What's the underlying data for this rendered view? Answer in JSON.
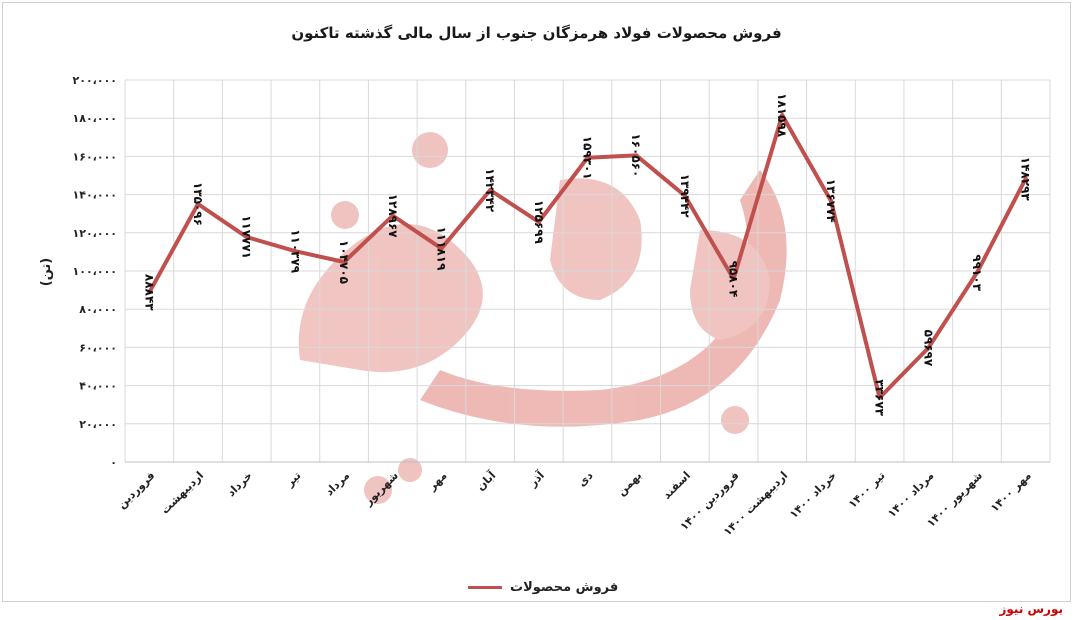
{
  "chart_data": {
    "type": "line",
    "title": "فروش محصولات فولاد هرمزگان جنوب از سال مالی گذشته تاکنون",
    "ylabel": "(تن)",
    "ylim": [
      0,
      200000
    ],
    "yticks": [
      "۰",
      "۲۰،۰۰۰",
      "۴۰،۰۰۰",
      "۶۰،۰۰۰",
      "۸۰،۰۰۰",
      "۱۰۰،۰۰۰",
      "۱۲۰،۰۰۰",
      "۱۴۰،۰۰۰",
      "۱۶۰،۰۰۰",
      "۱۸۰،۰۰۰",
      "۲۰۰،۰۰۰"
    ],
    "categories": [
      "فروردین",
      "اردیبهشت",
      "خرداد",
      "تیر",
      "مرداد",
      "شهریور",
      "مهر",
      "آبان",
      "آذر",
      "دی",
      "بهمن",
      "اسفند",
      "فروردین ۱۴۰۰",
      "اردیبهشت ۱۴۰۰",
      "خرداد ۱۴۰۰",
      "تیر ۱۴۰۰",
      "مرداد ۱۴۰۰",
      "شهریور ۱۴۰۰",
      "مهر ۱۴۰۰"
    ],
    "series": [
      {
        "name": "فروش محصولات",
        "color": "#c0504d",
        "values": [
          88843,
          135096,
          117771,
          110379,
          104705,
          128967,
          111819,
          142342,
          125699,
          159301,
          160560,
          139442,
          95804,
          181598,
          136774,
          33673,
          59697,
          99103,
          148293
        ],
        "labels": [
          "۸۸۸۴۳",
          "۱۳۵۰۹۶",
          "۱۱۷۷۷۱",
          "۱۱۰۳۷۹",
          "۱۰۴۷۰۵",
          "۱۲۸۹۶۷",
          "۱۱۱۸۱۹",
          "۱۴۲۳۴۲",
          "۱۲۵۶۹۹",
          "۱۵۹۳۰۱",
          "۱۶۰۵۶۰",
          "۱۳۹۴۴۲",
          "۹۵۸۰۴",
          "۱۸۱۵۹۸",
          "۱۳۶۷۷۴",
          "۳۳۶۷۳",
          "۵۹۶۹۷",
          "۹۹۱۰۳",
          "۱۴۸۲۹۳"
        ]
      }
    ],
    "grid": true,
    "legend_position": "bottom"
  },
  "watermark": {
    "text": "بورس نیوز",
    "color": "#e8a6a2"
  },
  "credit": "بورس نیوز"
}
